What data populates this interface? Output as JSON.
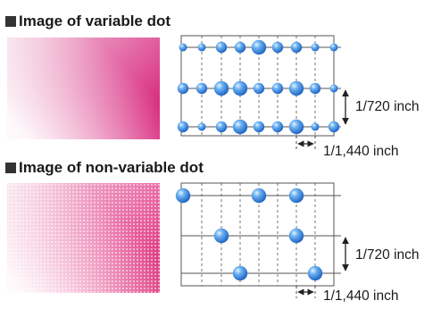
{
  "sections": [
    {
      "title": "Image of variable dot",
      "vertical_label": "1/720 inch",
      "horizontal_label": "1/1,440 inch"
    },
    {
      "title": "Image of non-variable dot",
      "vertical_label": "1/720 inch",
      "horizontal_label": "1/1,440 inch"
    }
  ],
  "colors": {
    "magenta": "#d3126f",
    "dot_blue": "#2a7fe0",
    "grid_line": "#555555"
  },
  "dot_sizes_legend": [
    "small",
    "medium",
    "large"
  ]
}
